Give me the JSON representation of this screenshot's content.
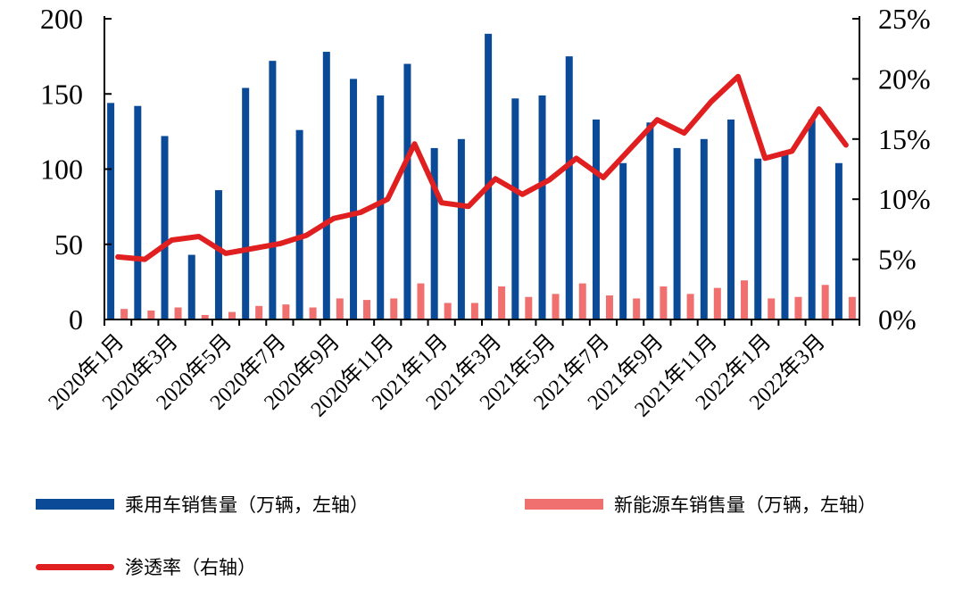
{
  "chart_data": {
    "type": "bar",
    "categories": [
      "2020年1月",
      "2020年2月",
      "2020年3月",
      "2020年4月",
      "2020年5月",
      "2020年6月",
      "2020年7月",
      "2020年8月",
      "2020年9月",
      "2020年10月",
      "2020年11月",
      "2020年12月",
      "2021年1月",
      "2021年2月",
      "2021年3月",
      "2021年4月",
      "2021年5月",
      "2021年6月",
      "2021年7月",
      "2021年8月",
      "2021年9月",
      "2021年10月",
      "2021年11月",
      "2021年12月",
      "2022年1月",
      "2022年2月",
      "2022年3月",
      "2022年4月"
    ],
    "x_tick_labels": [
      "2020年1月",
      "2020年3月",
      "2020年5月",
      "2020年7月",
      "2020年9月",
      "2020年11月",
      "2021年1月",
      "2021年3月",
      "2021年5月",
      "2021年7月",
      "2021年9月",
      "2021年11月",
      "2022年1月",
      "2022年3月"
    ],
    "series": [
      {
        "name": "乘用车销售量（万辆，左轴）",
        "type": "bar",
        "axis": "left",
        "color": "#0a4a96",
        "values": [
          144,
          142,
          122,
          43,
          86,
          154,
          172,
          126,
          178,
          160,
          149,
          170,
          114,
          120,
          190,
          147,
          149,
          175,
          133,
          104,
          131,
          114,
          120,
          133,
          107,
          112,
          133,
          104
        ]
      },
      {
        "name": "新能源车销售量（万辆，左轴）",
        "type": "bar",
        "axis": "left",
        "color": "#f07070",
        "values": [
          7,
          6,
          8,
          3,
          5,
          9,
          10,
          8,
          14,
          13,
          14,
          24,
          11,
          11,
          22,
          15,
          17,
          24,
          16,
          14,
          22,
          17,
          21,
          26,
          14,
          15,
          23,
          15
        ]
      },
      {
        "name": "渗透率（右轴）",
        "type": "line",
        "axis": "right",
        "color": "#e02020",
        "values": [
          5.2,
          5.0,
          6.6,
          6.9,
          5.5,
          5.9,
          6.3,
          7.0,
          8.4,
          8.9,
          10.0,
          14.6,
          9.7,
          9.4,
          11.7,
          10.4,
          11.6,
          13.4,
          11.8,
          14.2,
          16.6,
          15.5,
          18.1,
          20.2,
          13.4,
          14.0,
          17.5,
          14.5
        ]
      }
    ],
    "ylim_left": [
      0,
      200
    ],
    "yticks_left": [
      "0",
      "50",
      "100",
      "150",
      "200"
    ],
    "ylim_right": [
      0,
      25
    ],
    "yticks_right": [
      "0%",
      "5%",
      "10%",
      "15%",
      "20%",
      "25%"
    ],
    "legend_position": "bottom"
  }
}
